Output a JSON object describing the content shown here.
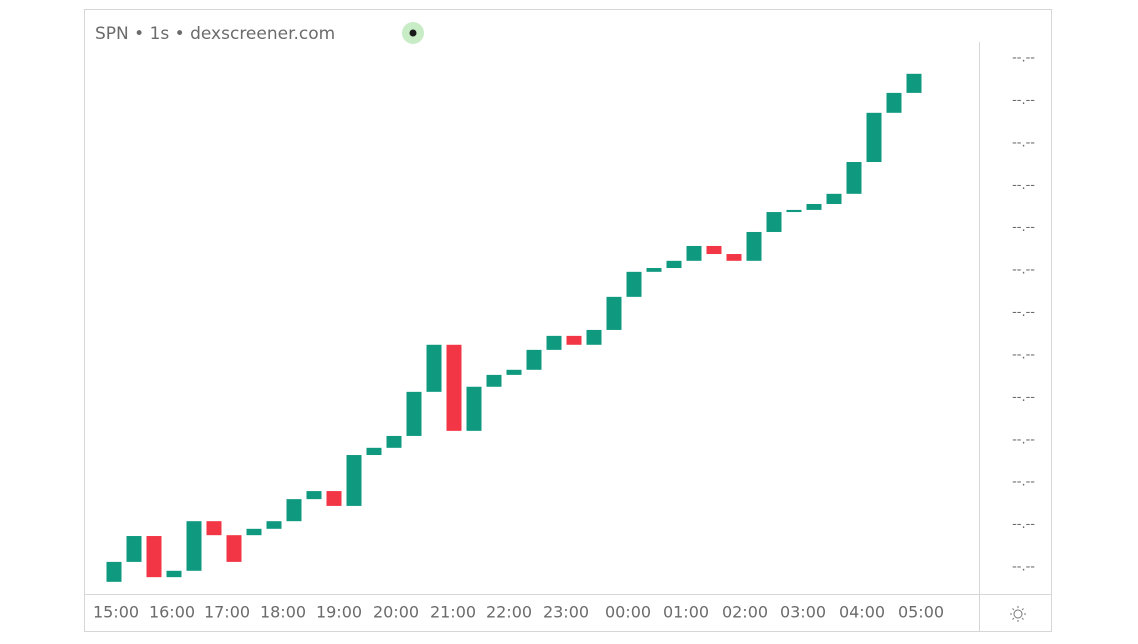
{
  "chart_data": {
    "type": "candlestick",
    "title": "SPN • 1s • dexscreener.com",
    "x": [
      0,
      1,
      2,
      3,
      4,
      5,
      6,
      7,
      8,
      9,
      10,
      11,
      12,
      13,
      14,
      15,
      16,
      17,
      18,
      19,
      20,
      21,
      22,
      23,
      24,
      25,
      26,
      27,
      28,
      29,
      30,
      31,
      32,
      33,
      34,
      35,
      36,
      37,
      38,
      39,
      40
    ],
    "open": [
      -0.35,
      0.12,
      0.73,
      -0.24,
      -0.09,
      1.08,
      0.75,
      0.75,
      0.9,
      1.08,
      1.6,
      1.79,
      1.44,
      2.64,
      2.81,
      3.09,
      4.13,
      5.24,
      3.21,
      4.25,
      4.53,
      4.65,
      5.12,
      5.45,
      5.24,
      5.59,
      6.37,
      6.96,
      7.05,
      7.22,
      7.57,
      7.38,
      7.22,
      7.9,
      8.37,
      8.42,
      8.56,
      8.8,
      9.55,
      10.71,
      11.18
    ],
    "close": [
      0.12,
      0.73,
      -0.24,
      -0.09,
      1.08,
      0.75,
      0.12,
      0.9,
      1.08,
      1.6,
      1.79,
      1.44,
      2.64,
      2.81,
      3.09,
      4.13,
      5.24,
      3.21,
      4.25,
      4.53,
      4.65,
      5.12,
      5.45,
      5.24,
      5.59,
      6.37,
      6.96,
      7.05,
      7.22,
      7.57,
      7.38,
      7.22,
      7.9,
      8.37,
      8.42,
      8.56,
      8.8,
      9.55,
      10.71,
      11.18,
      11.63
    ],
    "up_color": "#0f9a80",
    "down_color": "#f23645",
    "xlim": [
      -1.45,
      43.25
    ],
    "ylim": [
      -0.59,
      12.38
    ],
    "xticks": [
      {
        "value": 0.1,
        "label": "15:00"
      },
      {
        "value": 2.9,
        "label": "16:00"
      },
      {
        "value": 5.65,
        "label": "17:00"
      },
      {
        "value": 8.45,
        "label": "18:00"
      },
      {
        "value": 11.25,
        "label": "19:00"
      },
      {
        "value": 14.1,
        "label": "20:00"
      },
      {
        "value": 16.95,
        "label": "21:00"
      },
      {
        "value": 19.75,
        "label": "22:00"
      },
      {
        "value": 22.6,
        "label": "23:00"
      },
      {
        "value": 25.7,
        "label": "00:00"
      },
      {
        "value": 28.6,
        "label": "01:00"
      },
      {
        "value": 31.55,
        "label": "02:00"
      },
      {
        "value": 34.45,
        "label": "03:00"
      },
      {
        "value": 37.4,
        "label": "04:00"
      },
      {
        "value": 40.35,
        "label": "05:00"
      }
    ],
    "yticks": [
      {
        "value": 0,
        "label": "--.--"
      },
      {
        "value": 1,
        "label": "--.--"
      },
      {
        "value": 2,
        "label": "--.--"
      },
      {
        "value": 3,
        "label": "--.--"
      },
      {
        "value": 4,
        "label": "--.--"
      },
      {
        "value": 5,
        "label": "--.--"
      },
      {
        "value": 6,
        "label": "--.--"
      },
      {
        "value": 7,
        "label": "--.--"
      },
      {
        "value": 8,
        "label": "--.--"
      },
      {
        "value": 9,
        "label": "--.--"
      },
      {
        "value": 10,
        "label": "--.--"
      },
      {
        "value": 11,
        "label": "--.--"
      },
      {
        "value": 12,
        "label": "--.--"
      }
    ]
  }
}
